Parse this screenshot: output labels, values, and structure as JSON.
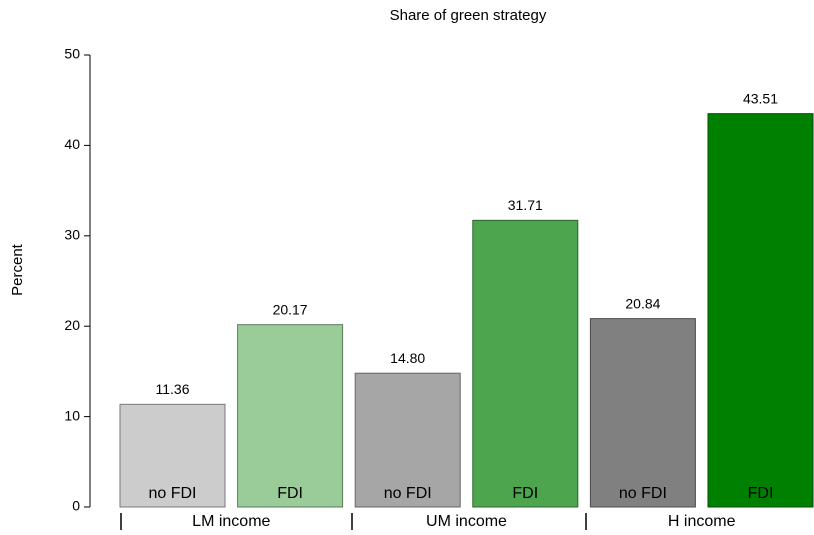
{
  "chart_data": {
    "type": "bar",
    "title": "Share of green strategy",
    "y_label": "Percent",
    "categories": [
      "no FDI",
      "FDI",
      "no FDI",
      "FDI",
      "no FDI",
      "FDI"
    ],
    "groups": [
      "LM income",
      "UM income",
      "H income"
    ],
    "values": [
      11.36,
      20.17,
      14.8,
      31.71,
      20.84,
      43.51
    ],
    "value_labels": [
      "11.36",
      "20.17",
      "14.80",
      "31.71",
      "20.84",
      "43.51"
    ],
    "colors": [
      "#cccccc",
      "#99cc99",
      "#a6a6a6",
      "#4da64d",
      "#808080",
      "#008000"
    ],
    "ylim": [
      0,
      50
    ],
    "yticks": [
      0,
      10,
      20,
      30,
      40,
      50
    ]
  }
}
